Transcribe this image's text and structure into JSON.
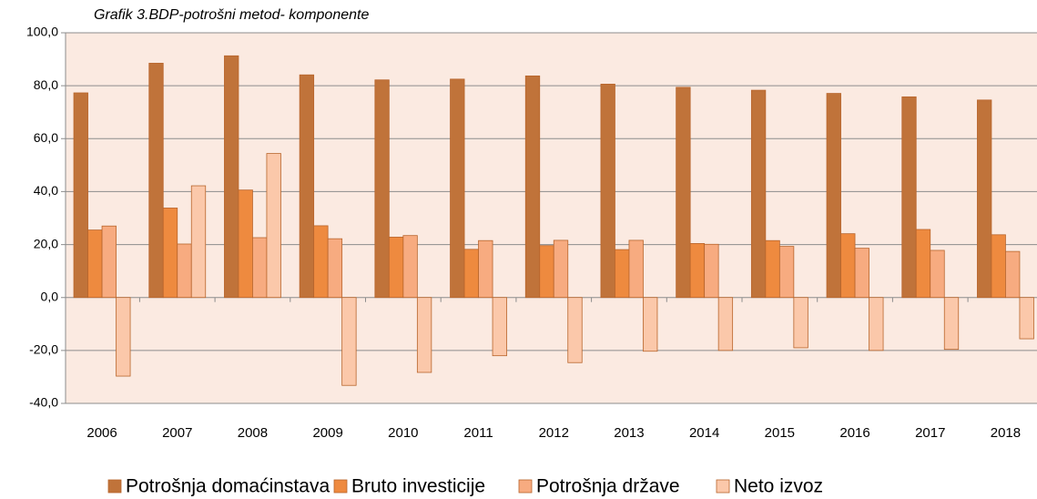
{
  "chart_data": {
    "type": "bar",
    "title": "Grafik 3.BDP-potrošni metod- komponente",
    "categories": [
      "2006",
      "2007",
      "2008",
      "2009",
      "2010",
      "2011",
      "2012",
      "2013",
      "2014",
      "2015",
      "2016",
      "2017",
      "2018"
    ],
    "series": [
      {
        "name": "Potrošnja domaćinstava",
        "color": "#c0733a",
        "values": [
          77.3,
          88.5,
          91.3,
          84.1,
          82.2,
          82.5,
          83.7,
          80.6,
          79.4,
          78.3,
          77.1,
          75.8,
          74.6
        ]
      },
      {
        "name": "Bruto investicije",
        "color": "#ee8a3f",
        "values": [
          25.5,
          33.8,
          40.6,
          27.1,
          22.8,
          18.2,
          19.6,
          18.1,
          20.4,
          21.5,
          24.1,
          25.7,
          23.7
        ]
      },
      {
        "name": "Potrošnja države",
        "color": "#f7ab80",
        "values": [
          27.0,
          20.2,
          22.6,
          22.2,
          23.4,
          21.5,
          21.6,
          21.6,
          20.1,
          19.3,
          18.6,
          17.8,
          17.4
        ]
      },
      {
        "name": "Neto izvoz",
        "color": "#fbc8aa",
        "values": [
          -29.7,
          42.2,
          54.4,
          -33.2,
          -28.3,
          -22.0,
          -24.6,
          -20.3,
          -20.0,
          -19.0,
          -20.0,
          -19.6,
          -15.6
        ]
      }
    ],
    "ylim": [
      -40,
      100
    ],
    "yticks": [
      {
        "value": -40,
        "label": "-40,0"
      },
      {
        "value": -20,
        "label": "-20,0"
      },
      {
        "value": 0,
        "label": "0,0"
      },
      {
        "value": 20,
        "label": "20,0"
      },
      {
        "value": 40,
        "label": "40,0"
      },
      {
        "value": 60,
        "label": "60,0"
      },
      {
        "value": 80,
        "label": "80,0"
      },
      {
        "value": 100,
        "label": "100,0"
      }
    ],
    "grid": true,
    "background": "#fbeae1",
    "legend": "bottom"
  }
}
